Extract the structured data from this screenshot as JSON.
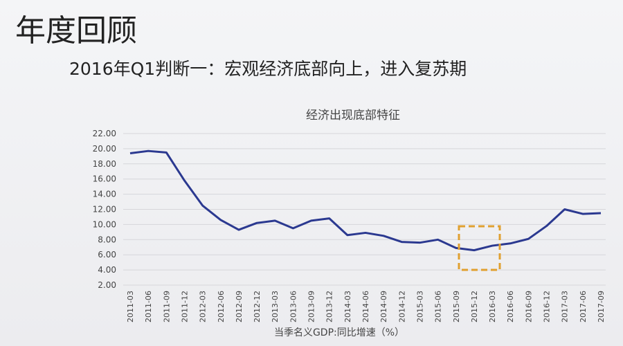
{
  "header": {
    "title": "年度回顾",
    "subtitle": "2016年Q1判断一：宏观经济底部向上，进入复苏期"
  },
  "chart_data": {
    "type": "line",
    "title": "经济出现底部特征",
    "x_label": "当季名义GDP:同比增速（%）",
    "categories": [
      "2011-03",
      "2011-06",
      "2011-09",
      "2011-12",
      "2012-03",
      "2012-06",
      "2012-09",
      "2012-12",
      "2013-03",
      "2013-06",
      "2013-09",
      "2013-12",
      "2014-03",
      "2014-06",
      "2014-09",
      "2014-12",
      "2015-03",
      "2015-06",
      "2015-09",
      "2015-12",
      "2016-03",
      "2016-06",
      "2016-09",
      "2016-12",
      "2017-03",
      "2017-06",
      "2017-09"
    ],
    "values": [
      19.4,
      19.7,
      19.5,
      15.8,
      12.5,
      10.6,
      9.3,
      10.2,
      10.5,
      9.5,
      10.5,
      10.8,
      8.6,
      8.9,
      8.5,
      7.7,
      7.6,
      8.0,
      6.9,
      6.6,
      7.2,
      7.5,
      8.1,
      9.8,
      12.0,
      11.4,
      11.5
    ],
    "color": "#2b3990",
    "ylim": [
      2,
      22
    ],
    "yticks": [
      {
        "value": 2,
        "label": "2.00"
      },
      {
        "value": 4,
        "label": "4.00"
      },
      {
        "value": 6,
        "label": "6.00"
      },
      {
        "value": 8,
        "label": "8.00"
      },
      {
        "value": 10,
        "label": "10.00"
      },
      {
        "value": 12,
        "label": "12.00"
      },
      {
        "value": 14,
        "label": "14.00"
      },
      {
        "value": 16,
        "label": "16.00"
      },
      {
        "value": 18,
        "label": "18.00"
      },
      {
        "value": 20,
        "label": "20.00"
      },
      {
        "value": 22,
        "label": "22.00"
      }
    ],
    "grid": true
  }
}
